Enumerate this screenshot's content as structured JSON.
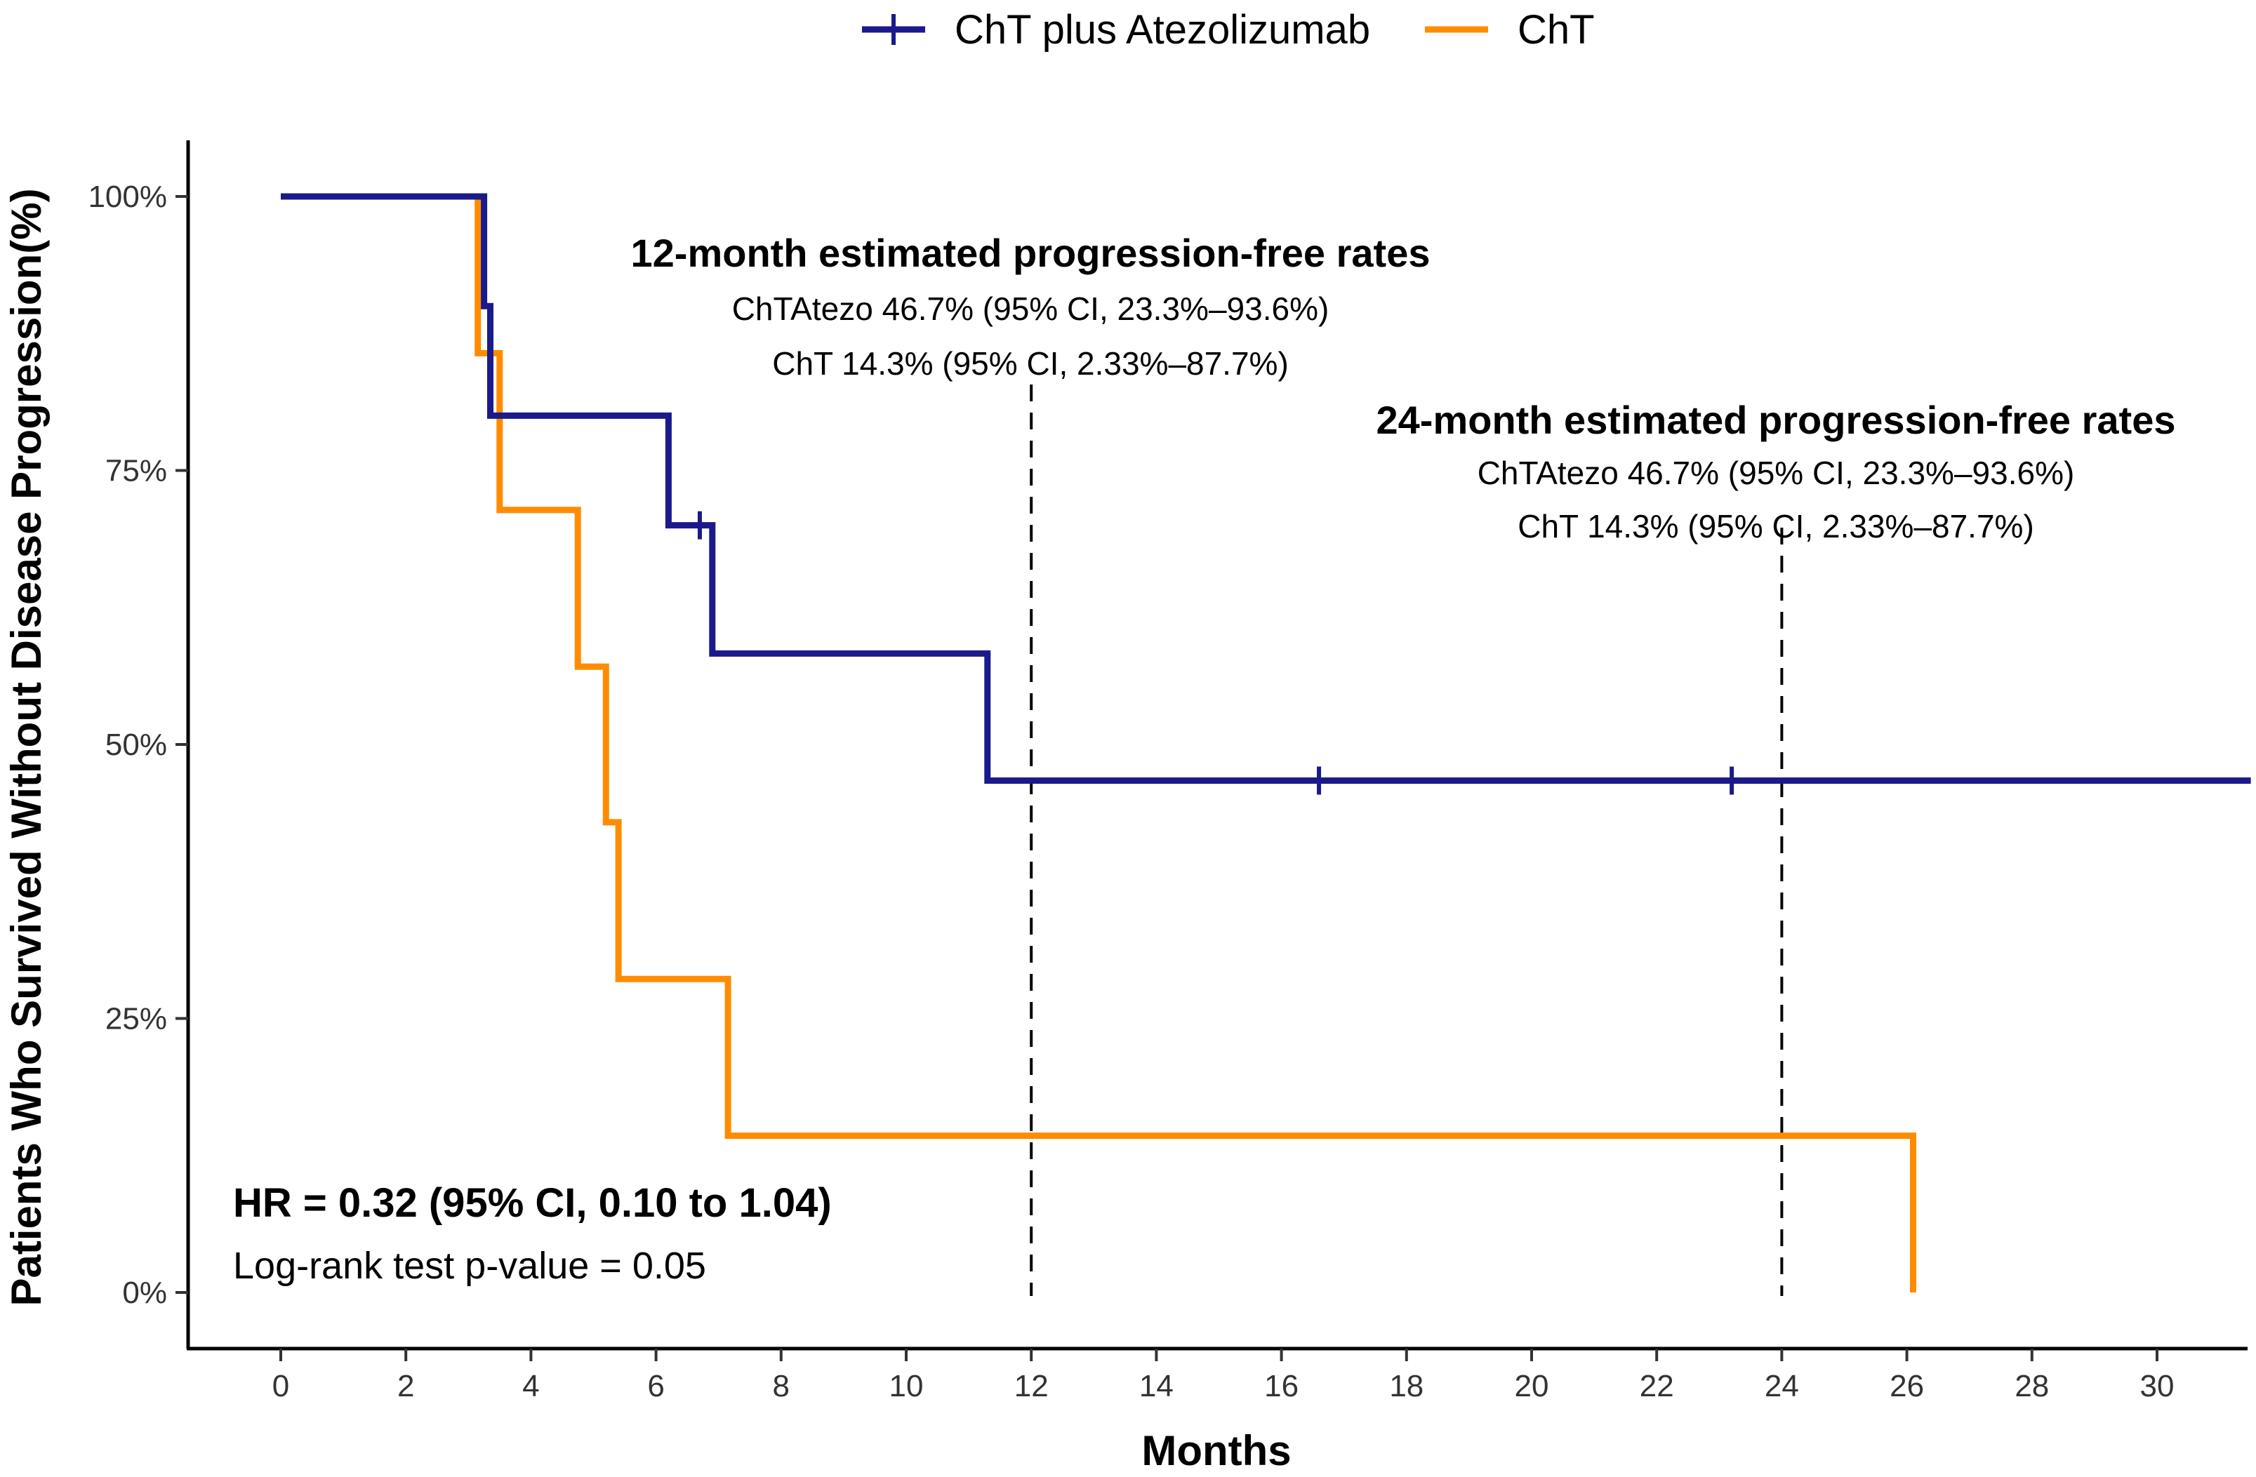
{
  "chart_data": {
    "type": "line",
    "subtype": "kaplan-meier-step",
    "xlabel": "Months",
    "ylabel": "Patients Who Survived Without Disease Progression(%)",
    "xlim": [
      -1.5,
      31.5
    ],
    "ylim": [
      -0.05,
      1.05
    ],
    "x_ticks": [
      0,
      2,
      4,
      6,
      8,
      10,
      12,
      14,
      16,
      18,
      20,
      22,
      24,
      26,
      28,
      30
    ],
    "y_ticks": [
      {
        "value": 0,
        "label": "0%"
      },
      {
        "value": 0.25,
        "label": "25%"
      },
      {
        "value": 0.5,
        "label": "50%"
      },
      {
        "value": 0.75,
        "label": "75%"
      },
      {
        "value": 1,
        "label": "100%"
      }
    ],
    "grid": false,
    "legend_position": "top-center",
    "series": [
      {
        "name": "ChT plus Atezolizumab",
        "color": "#1a1a8c",
        "steps": [
          [
            0,
            1.0
          ],
          [
            3.25,
            1.0
          ],
          [
            3.25,
            0.9
          ],
          [
            3.35,
            0.9
          ],
          [
            3.35,
            0.8
          ],
          [
            6.2,
            0.8
          ],
          [
            6.2,
            0.7
          ],
          [
            6.9,
            0.7
          ],
          [
            6.9,
            0.583
          ],
          [
            11.3,
            0.583
          ],
          [
            11.3,
            0.467
          ],
          [
            31.5,
            0.467
          ]
        ],
        "censored": [
          [
            6.7,
            0.7
          ],
          [
            16.6,
            0.467
          ],
          [
            23.2,
            0.467
          ]
        ]
      },
      {
        "name": "ChT",
        "color": "#ff8c00",
        "steps": [
          [
            0,
            1.0
          ],
          [
            3.15,
            1.0
          ],
          [
            3.15,
            0.857
          ],
          [
            3.5,
            0.857
          ],
          [
            3.5,
            0.714
          ],
          [
            4.75,
            0.714
          ],
          [
            4.75,
            0.571
          ],
          [
            5.2,
            0.571
          ],
          [
            5.2,
            0.429
          ],
          [
            5.4,
            0.429
          ],
          [
            5.4,
            0.286
          ],
          [
            7.15,
            0.286
          ],
          [
            7.15,
            0.143
          ],
          [
            26.1,
            0.143
          ],
          [
            26.1,
            0.0
          ]
        ],
        "censored": []
      }
    ],
    "reference_lines_x": [
      12,
      24
    ],
    "annotations": {
      "m12": {
        "title": "12-month estimated progression-free rates",
        "line1": "ChTAtezo 46.7% (95% CI, 23.3%–93.6%)",
        "line2": "ChT 14.3% (95% CI, 2.33%–87.7%)"
      },
      "m24": {
        "title": "24-month estimated progression-free rates",
        "line1": "ChTAtezo 46.7% (95% CI, 23.3%–93.6%)",
        "line2": "ChT 14.3% (95% CI, 2.33%–87.7%)"
      },
      "hr": "HR = 0.32 (95% CI, 0.10 to 1.04)",
      "logrank": "Log-rank test p-value = 0.05"
    }
  }
}
